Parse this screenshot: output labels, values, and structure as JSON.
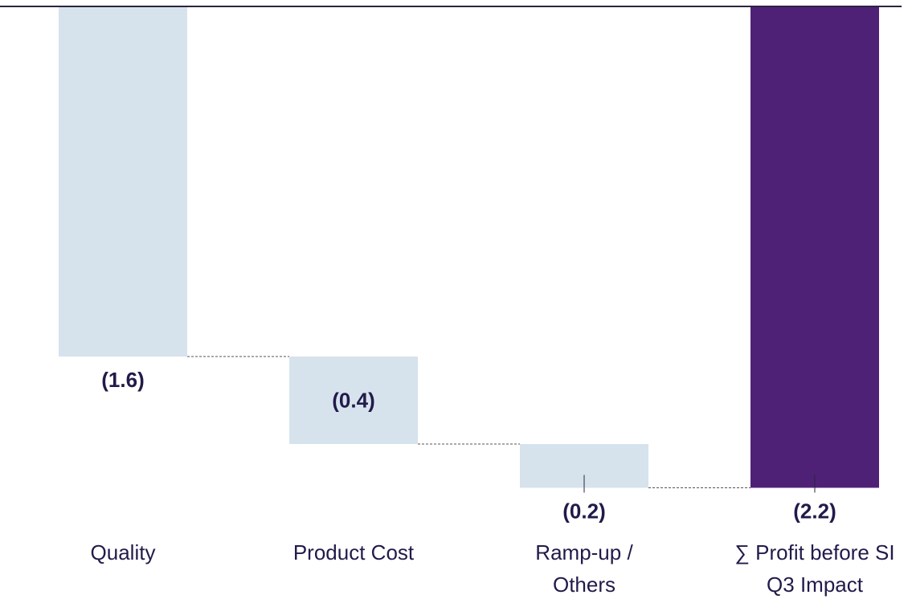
{
  "chart_data": {
    "type": "bar",
    "subtype": "waterfall",
    "title": "",
    "xlabel": "",
    "ylabel": "",
    "ylim": [
      -2.2,
      0
    ],
    "grid": false,
    "legend": "none",
    "categories": [
      [
        "Quality"
      ],
      [
        "Product Cost"
      ],
      [
        "Ramp-up /",
        "Others"
      ],
      [
        "∑ Profit before SI",
        "Q3 Impact"
      ]
    ],
    "values": [
      -1.6,
      -0.4,
      -0.2,
      -2.2
    ],
    "is_total": [
      false,
      false,
      false,
      true
    ],
    "data_labels": [
      "(1.6)",
      "(0.4)",
      "(0.2)",
      "(2.2)"
    ]
  },
  "colors": {
    "delta_bar": "#d6e3ed",
    "total_bar": "#4f2176",
    "baseline": "#2b2440",
    "connector": "#555555",
    "value_text": "#231a4a",
    "category_text": "#231a4a"
  }
}
